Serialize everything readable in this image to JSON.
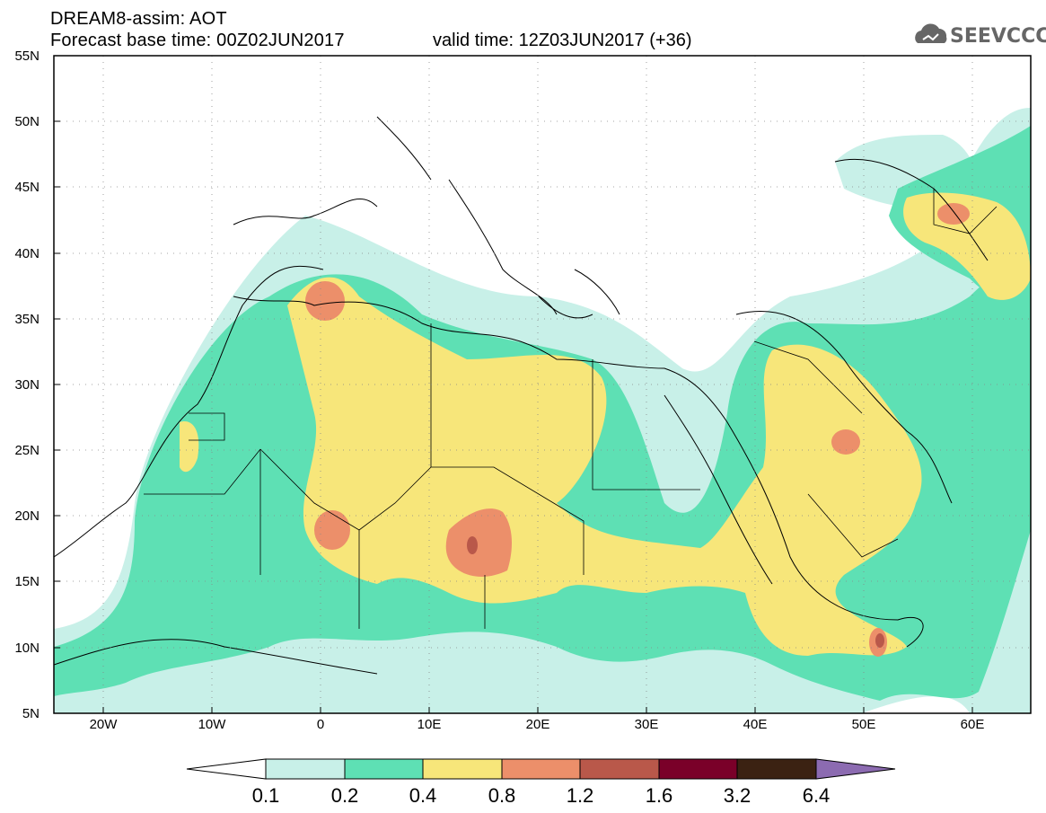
{
  "header": {
    "line1": "DREAM8-assim: AOT",
    "line2": "Forecast base time: 00Z02JUN2017",
    "valid": "valid time: 12Z03JUN2017 (+36)"
  },
  "logo": {
    "text": "SEEVCCC",
    "icon": "cloud-icon"
  },
  "map": {
    "lat_labels": [
      "55N",
      "50N",
      "45N",
      "40N",
      "35N",
      "30N",
      "25N",
      "20N",
      "15N",
      "10N",
      "5N"
    ],
    "lon_labels": [
      "20W",
      "10W",
      "0",
      "10E",
      "20E",
      "30E",
      "40E",
      "50E",
      "60E"
    ],
    "lon_range": [
      -25,
      65
    ],
    "lat_range": [
      5,
      55
    ]
  },
  "colorbar": {
    "labels": [
      "0.1",
      "0.2",
      "0.4",
      "0.8",
      "1.2",
      "1.6",
      "3.2",
      "6.4"
    ],
    "colors": [
      "#ffffff",
      "#c8f0e8",
      "#5ee0b4",
      "#f7e67a",
      "#ec8f6a",
      "#b9584a",
      "#7a0029",
      "#3b2212",
      "#8c6bb1"
    ]
  }
}
